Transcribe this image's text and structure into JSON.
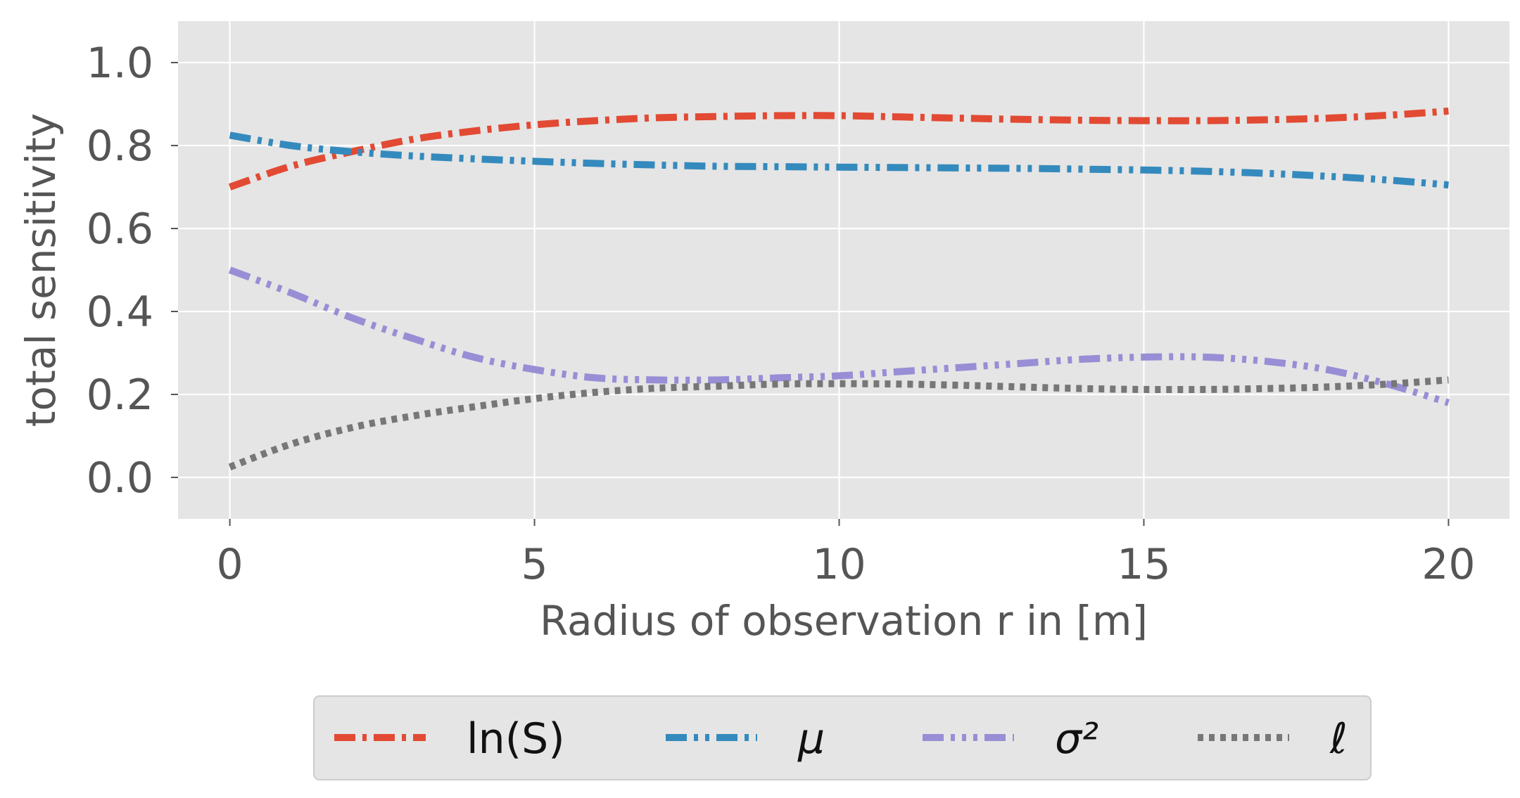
{
  "chart_data": {
    "type": "line",
    "xlabel": "Radius of observation r in [m]",
    "ylabel": "total sensitivity",
    "xlim": [
      -0.85,
      21.0
    ],
    "ylim": [
      -0.1,
      1.1
    ],
    "xticks": [
      "0",
      "5",
      "10",
      "15",
      "20"
    ],
    "yticks": [
      "0.0",
      "0.2",
      "0.4",
      "0.6",
      "0.8",
      "1.0"
    ],
    "grid": true,
    "legend_position": "below, centered",
    "x": [
      0,
      1,
      2,
      3,
      4,
      5,
      6,
      7,
      8,
      9,
      10,
      11,
      12,
      13,
      14,
      15,
      16,
      17,
      18,
      19,
      20
    ],
    "series": [
      {
        "name": "ln(S)",
        "color": "#E24A33",
        "dash": "dashdot",
        "values": [
          0.7,
          0.75,
          0.785,
          0.815,
          0.835,
          0.85,
          0.86,
          0.867,
          0.87,
          0.872,
          0.872,
          0.869,
          0.866,
          0.863,
          0.861,
          0.86,
          0.86,
          0.862,
          0.866,
          0.873,
          0.883
        ]
      },
      {
        "name": "μ",
        "color": "#348ABD",
        "dash": "dashdotdot",
        "values": [
          0.825,
          0.8,
          0.785,
          0.775,
          0.768,
          0.762,
          0.757,
          0.753,
          0.75,
          0.749,
          0.748,
          0.747,
          0.746,
          0.745,
          0.743,
          0.741,
          0.738,
          0.733,
          0.726,
          0.717,
          0.705
        ]
      },
      {
        "name": "σ²",
        "color": "#988ED5",
        "dash": "dashdotdotdot",
        "values": [
          0.5,
          0.445,
          0.385,
          0.335,
          0.29,
          0.26,
          0.24,
          0.235,
          0.235,
          0.24,
          0.245,
          0.255,
          0.265,
          0.275,
          0.285,
          0.29,
          0.29,
          0.28,
          0.26,
          0.225,
          0.18
        ]
      },
      {
        "name": "ℓ",
        "color": "#777777",
        "dash": "dotted",
        "values": [
          0.025,
          0.08,
          0.12,
          0.148,
          0.17,
          0.19,
          0.205,
          0.215,
          0.22,
          0.225,
          0.226,
          0.225,
          0.222,
          0.218,
          0.214,
          0.212,
          0.212,
          0.214,
          0.218,
          0.225,
          0.235
        ]
      }
    ]
  }
}
